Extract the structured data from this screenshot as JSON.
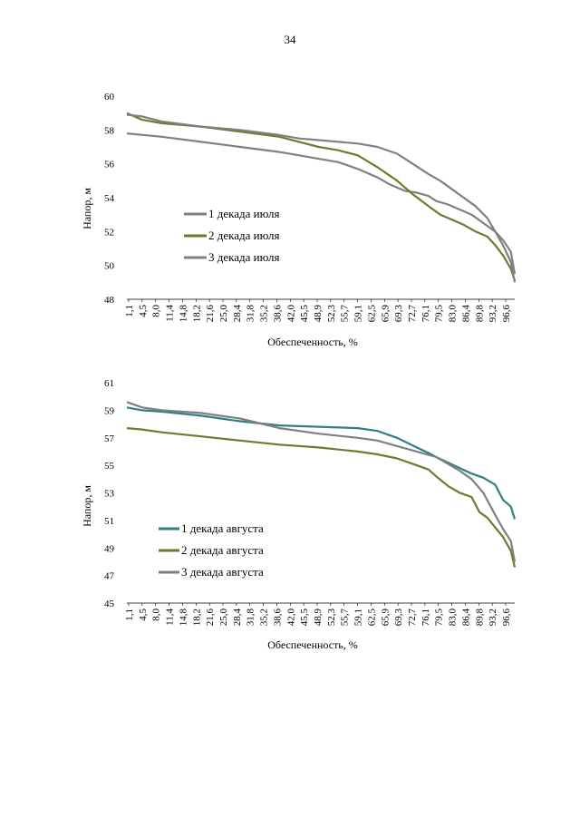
{
  "page": {
    "number": "34"
  },
  "colors": {
    "gray": "#808080",
    "olive": "#707a2e",
    "teal": "#2f7f86"
  },
  "chart_data": [
    {
      "type": "line",
      "title": "",
      "xlabel": "Обеспеченность, %",
      "ylabel": "Напор, м",
      "ylim": [
        48,
        60
      ],
      "yticks": [
        48,
        50,
        52,
        54,
        56,
        58,
        60
      ],
      "xlim": [
        1.1,
        100
      ],
      "categories": [
        "1,1",
        "4,5",
        "8,0",
        "11,4",
        "14,8",
        "18,2",
        "21,6",
        "25,0",
        "28,4",
        "31,8",
        "35,2",
        "38,6",
        "42,0",
        "45,5",
        "48,9",
        "52,3",
        "55,7",
        "59,1",
        "62,5",
        "65,9",
        "69,3",
        "72,7",
        "76,1",
        "79,5",
        "83,0",
        "86,4",
        "89,8",
        "93,2",
        "96,6"
      ],
      "legend_position": "center-left",
      "series": [
        {
          "name": "1 декада июля",
          "color": "#808080",
          "x": [
            1.1,
            10,
            20,
            30,
            40,
            45,
            50,
            55,
            60,
            65,
            68,
            72,
            75,
            78,
            80,
            83,
            86,
            89,
            92,
            95,
            97,
            99,
            100
          ],
          "y": [
            57.8,
            57.6,
            57.3,
            57.0,
            56.7,
            56.5,
            56.3,
            56.1,
            55.7,
            55.2,
            54.8,
            54.4,
            54.3,
            54.1,
            53.8,
            53.6,
            53.3,
            53.0,
            52.5,
            52.0,
            51.5,
            50.8,
            49.5
          ]
        },
        {
          "name": "2 декада июля",
          "color": "#707a2e",
          "x": [
            1.1,
            5,
            10,
            20,
            30,
            40,
            45,
            50,
            55,
            60,
            65,
            70,
            74,
            78,
            81,
            84,
            87,
            90,
            93,
            95,
            97,
            99,
            100
          ],
          "y": [
            59.0,
            58.6,
            58.4,
            58.2,
            57.9,
            57.6,
            57.3,
            57.0,
            56.8,
            56.5,
            55.8,
            55.0,
            54.2,
            53.5,
            53.0,
            52.7,
            52.4,
            52.0,
            51.7,
            51.2,
            50.6,
            49.8,
            49.1
          ]
        },
        {
          "name": "3 декада июля",
          "color": "#808080",
          "x": [
            1.1,
            5,
            10,
            20,
            30,
            40,
            45,
            50,
            55,
            60,
            65,
            70,
            74,
            78,
            81,
            84,
            87,
            90,
            93,
            95,
            97,
            99,
            100
          ],
          "y": [
            58.9,
            58.8,
            58.5,
            58.2,
            58.0,
            57.7,
            57.5,
            57.4,
            57.3,
            57.2,
            57.0,
            56.6,
            56.0,
            55.4,
            55.0,
            54.5,
            54.0,
            53.5,
            52.8,
            52.0,
            51.2,
            50.2,
            49.0
          ]
        }
      ]
    },
    {
      "type": "line",
      "title": "",
      "xlabel": "Обеспеченность, %",
      "ylabel": "Напор, м",
      "ylim": [
        45,
        61
      ],
      "yticks": [
        45,
        47,
        49,
        51,
        53,
        55,
        57,
        59,
        61
      ],
      "xlim": [
        1.1,
        100
      ],
      "categories": [
        "1,1",
        "4,5",
        "8,0",
        "11,4",
        "14,8",
        "18,2",
        "21,6",
        "25,0",
        "28,4",
        "31,8",
        "35,2",
        "38,6",
        "42,0",
        "45,5",
        "48,9",
        "52,3",
        "55,7",
        "59,1",
        "62,5",
        "65,9",
        "69,3",
        "72,7",
        "76,1",
        "79,5",
        "83,0",
        "86,4",
        "89,8",
        "93,2",
        "96,6"
      ],
      "legend_position": "center-left",
      "series": [
        {
          "name": "1 декада августа",
          "color": "#2f7f86",
          "x": [
            1.1,
            5,
            10,
            20,
            30,
            40,
            50,
            60,
            65,
            70,
            75,
            78,
            80,
            83,
            86,
            89,
            92,
            95,
            97,
            99,
            100
          ],
          "y": [
            59.2,
            59.0,
            58.9,
            58.6,
            58.2,
            57.9,
            57.8,
            57.7,
            57.5,
            57.0,
            56.3,
            55.9,
            55.6,
            55.2,
            54.8,
            54.4,
            54.1,
            53.6,
            52.5,
            52.0,
            51.1
          ]
        },
        {
          "name": "2 декада августа",
          "color": "#707a2e",
          "x": [
            1.1,
            5,
            10,
            20,
            30,
            40,
            50,
            60,
            65,
            70,
            75,
            78,
            80,
            83,
            86,
            89,
            91,
            93,
            95,
            97,
            99,
            100
          ],
          "y": [
            57.7,
            57.6,
            57.4,
            57.1,
            56.8,
            56.5,
            56.3,
            56.0,
            55.8,
            55.5,
            55.0,
            54.7,
            54.2,
            53.5,
            53.0,
            52.7,
            51.6,
            51.2,
            50.5,
            49.8,
            48.8,
            47.6
          ]
        },
        {
          "name": "3 декада августа",
          "color": "#808080",
          "x": [
            1.1,
            5,
            10,
            20,
            30,
            40,
            50,
            60,
            65,
            70,
            75,
            80,
            83,
            86,
            89,
            92,
            95,
            97,
            99,
            100
          ],
          "y": [
            59.6,
            59.2,
            59.0,
            58.8,
            58.4,
            57.7,
            57.3,
            57.0,
            56.8,
            56.4,
            56.0,
            55.6,
            55.1,
            54.6,
            54.0,
            53.0,
            51.4,
            50.4,
            49.5,
            48.0
          ]
        }
      ]
    }
  ]
}
